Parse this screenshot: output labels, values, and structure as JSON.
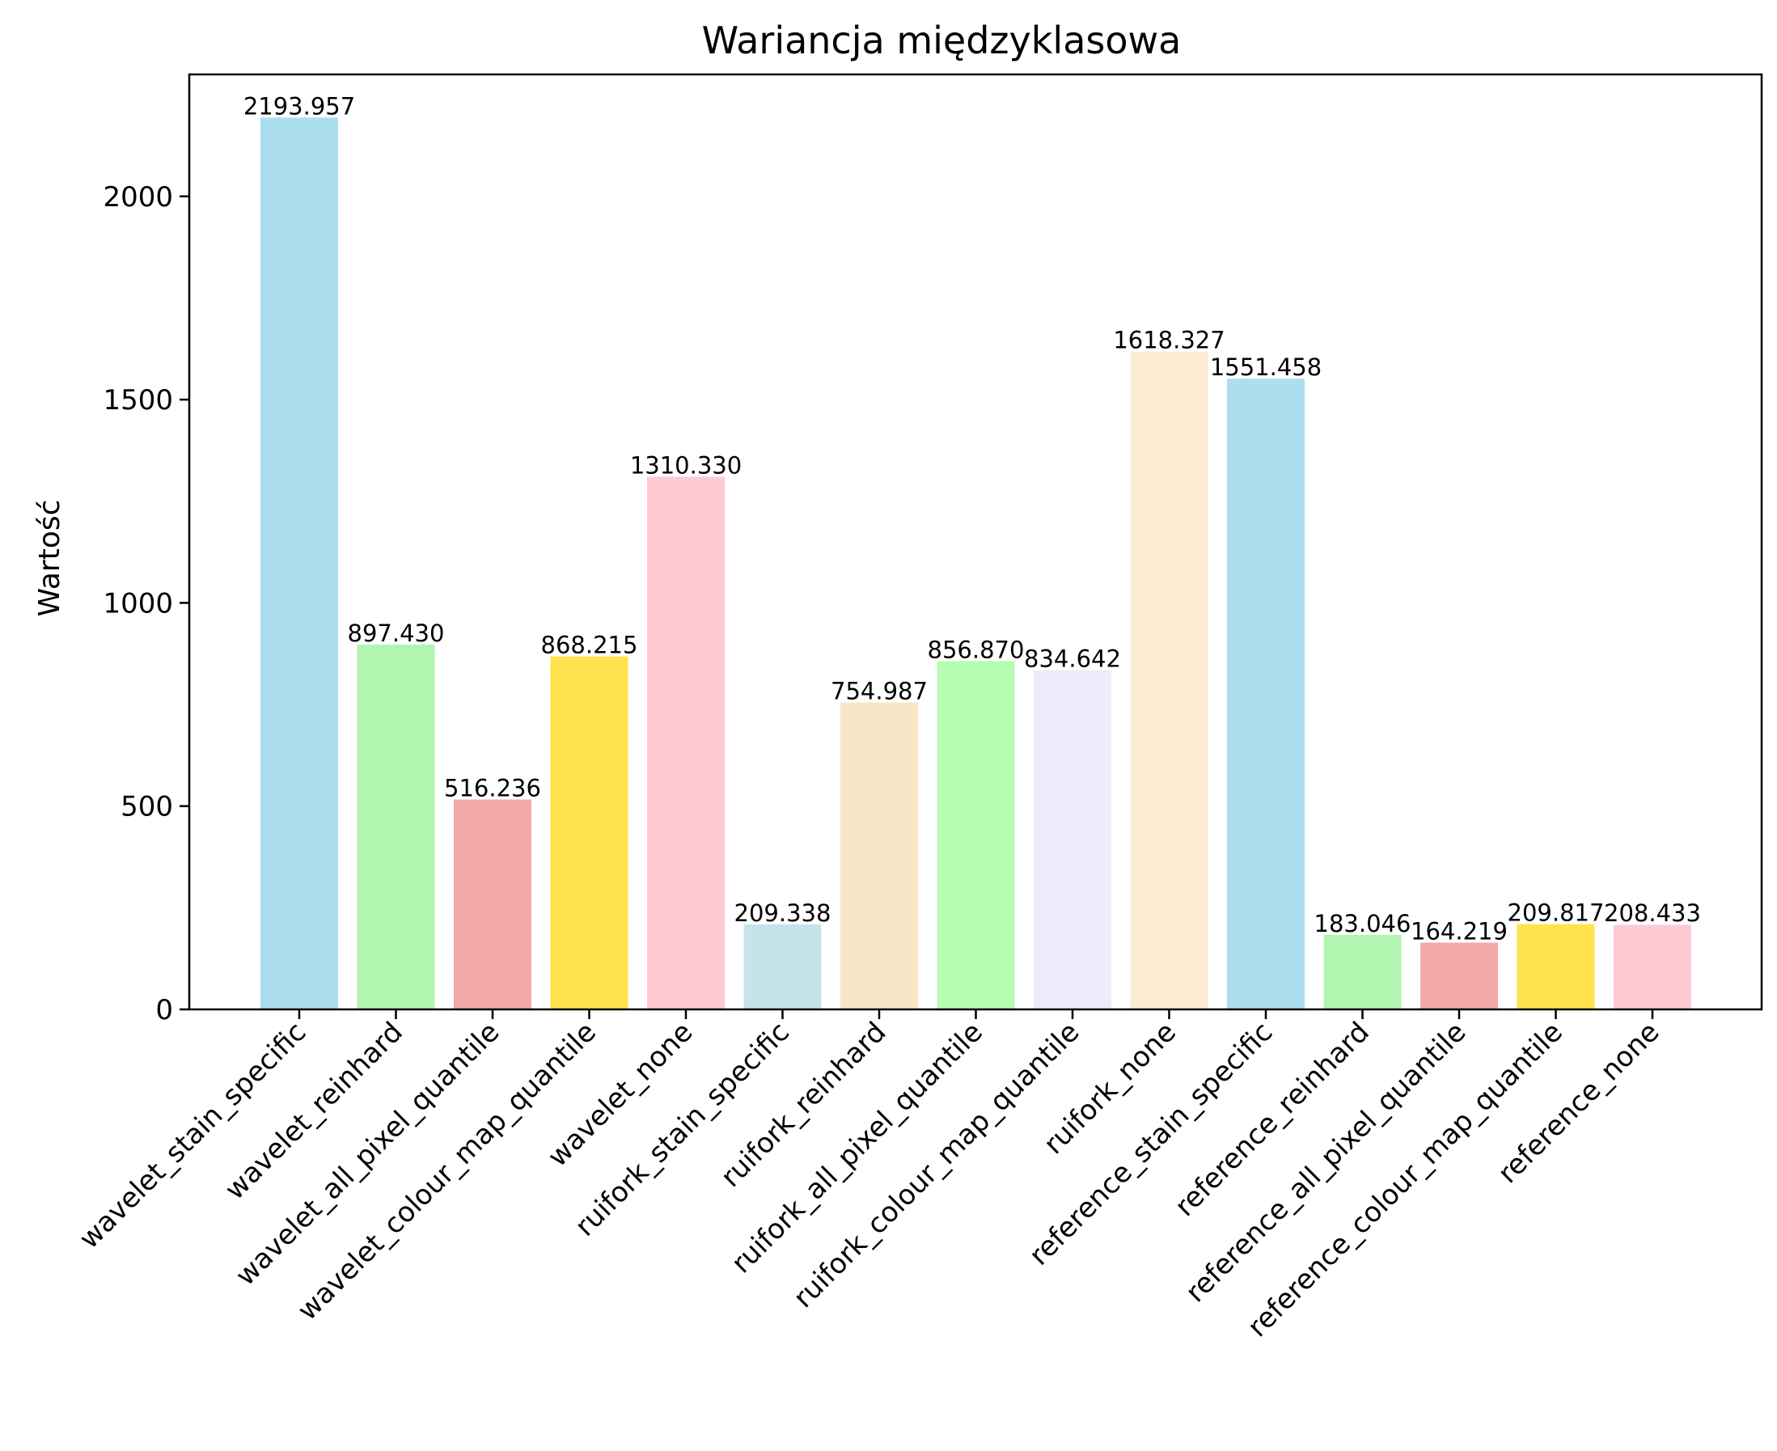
{
  "chart_data": {
    "type": "bar",
    "title": "Wariancja międzyklasowa",
    "xlabel": "",
    "ylabel": "Wartość",
    "ylim": [
      0,
      2300
    ],
    "yticks": [
      0,
      500,
      1000,
      1500,
      2000
    ],
    "grid": false,
    "categories": [
      "wavelet_stain_specific",
      "wavelet_reinhard",
      "wavelet_all_pixel_quantile",
      "wavelet_colour_map_quantile",
      "wavelet_none",
      "ruifork_stain_specific",
      "ruifork_reinhard",
      "ruifork_all_pixel_quantile",
      "ruifork_colour_map_quantile",
      "ruifork_none",
      "reference_stain_specific",
      "reference_reinhard",
      "reference_all_pixel_quantile",
      "reference_colour_map_quantile",
      "reference_none"
    ],
    "values": [
      2193.957,
      897.43,
      516.236,
      868.215,
      1310.33,
      209.338,
      754.987,
      856.87,
      834.642,
      1618.327,
      1551.458,
      183.046,
      164.219,
      209.817,
      208.433
    ],
    "value_labels": [
      "2193.957",
      "897.430",
      "516.236",
      "868.215",
      "1310.330",
      "209.338",
      "754.987",
      "856.870",
      "834.642",
      "1618.327",
      "1551.458",
      "183.046",
      "164.219",
      "209.817",
      "208.433"
    ],
    "colors": [
      "#abdeef",
      "#b2f5b0",
      "#f3a9a9",
      "#ffe24d",
      "#ffcad4",
      "#c6e3ec",
      "#f6e5c7",
      "#b6fcb3",
      "#ececfa",
      "#fdecd4",
      "#abdeef",
      "#b2f5b0",
      "#f3a9a9",
      "#ffe24d",
      "#ffcad4"
    ]
  }
}
